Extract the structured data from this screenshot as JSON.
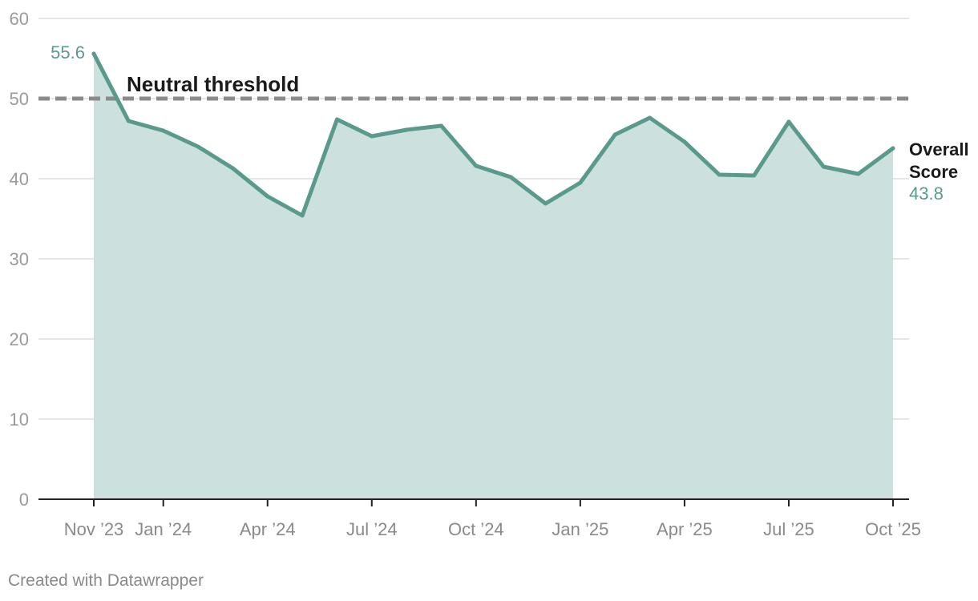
{
  "chart_data": {
    "type": "area",
    "x": [
      "Nov '23",
      "Dec '23",
      "Jan '24",
      "Feb '24",
      "Mar '24",
      "Apr '24",
      "May '24",
      "Jun '24",
      "Jul '24",
      "Aug '24",
      "Sep '24",
      "Oct '24",
      "Nov '24",
      "Dec '24",
      "Jan '25",
      "Feb '25",
      "Mar '25",
      "Apr '25",
      "May '25",
      "Jun '25",
      "Jul '25",
      "Aug '25",
      "Sep '25",
      "Oct '25"
    ],
    "series": [
      {
        "name": "Overall Score",
        "values": [
          55.6,
          47.2,
          46.0,
          44.0,
          41.3,
          37.8,
          35.4,
          47.4,
          45.3,
          46.1,
          46.6,
          41.6,
          40.2,
          36.9,
          39.5,
          45.5,
          47.6,
          44.6,
          40.5,
          40.4,
          47.1,
          41.5,
          40.6,
          43.8
        ]
      }
    ],
    "xticks": [
      {
        "label": "Nov ’23",
        "index": 0
      },
      {
        "label": "Jan ’24",
        "index": 2
      },
      {
        "label": "Apr ’24",
        "index": 5
      },
      {
        "label": "Jul ’24",
        "index": 8
      },
      {
        "label": "Oct ’24",
        "index": 11
      },
      {
        "label": "Jan ’25",
        "index": 14
      },
      {
        "label": "Apr ’25",
        "index": 17
      },
      {
        "label": "Jul ’25",
        "index": 20
      },
      {
        "label": "Oct ’25",
        "index": 23
      }
    ],
    "yticks": [
      0,
      10,
      20,
      30,
      40,
      50,
      60
    ],
    "ylim": [
      0,
      60
    ],
    "threshold": {
      "value": 50,
      "label": "Neutral threshold"
    },
    "annotations": {
      "first_value": "55.6",
      "series_label_line1": "Overall",
      "series_label_line2": "Score",
      "last_value": "43.8"
    },
    "grid": true,
    "colors": {
      "line": "#5a9a8d",
      "area": "#cce1dd",
      "threshold": "#8a8a8a",
      "grid": "#dddddd"
    }
  },
  "footer": {
    "credit": "Created with Datawrapper"
  }
}
